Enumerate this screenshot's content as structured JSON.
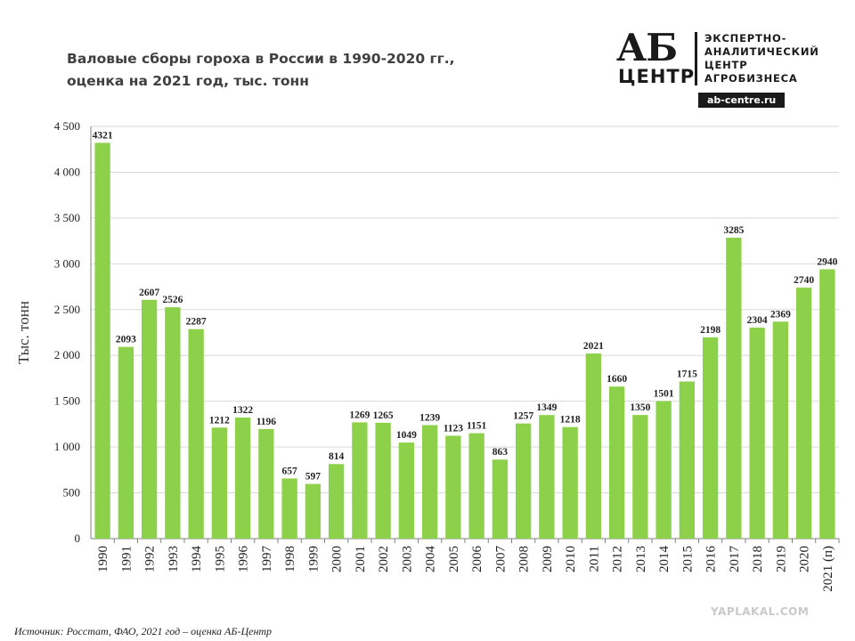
{
  "title": {
    "line1": "Валовые сборы гороха в России в 1990-2020 гг.,",
    "line2": "оценка на 2021 год, тыс. тонн"
  },
  "logo": {
    "letters": "АБ",
    "word": "ЦЕНТР",
    "line1": "ЭКСПЕРТНО-",
    "line2": "АНАЛИТИЧЕСКИЙ",
    "line3": "ЦЕНТР",
    "line4": "АГРОБИЗНЕСА",
    "url": "ab-centre.ru"
  },
  "source": {
    "label": "Источник:",
    "text": "Росстат, ФАО, 2021 год – оценка АБ-Центр"
  },
  "watermark": "YAPLAKAL.COM",
  "colors": {
    "bar": "#8dd14a",
    "grid": "#d9d9d9",
    "axis": "#808080",
    "text": "#222222"
  },
  "chart_data": {
    "type": "bar",
    "ylabel": "Тыс. тонн",
    "ylim": [
      0,
      4500
    ],
    "yticks": [
      {
        "value": 0,
        "label": "0"
      },
      {
        "value": 500,
        "label": "500"
      },
      {
        "value": 1000,
        "label": "1 000"
      },
      {
        "value": 1500,
        "label": "1 500"
      },
      {
        "value": 2000,
        "label": "2 000"
      },
      {
        "value": 2500,
        "label": "2 500"
      },
      {
        "value": 3000,
        "label": "3 000"
      },
      {
        "value": 3500,
        "label": "3 500"
      },
      {
        "value": 4000,
        "label": "4 000"
      },
      {
        "value": 4500,
        "label": "4 500"
      }
    ],
    "grid": true,
    "categories": [
      "1990",
      "1991",
      "1992",
      "1993",
      "1994",
      "1995",
      "1996",
      "1997",
      "1998",
      "1999",
      "2000",
      "2001",
      "2002",
      "2003",
      "2004",
      "2005",
      "2006",
      "2007",
      "2008",
      "2009",
      "2010",
      "2011",
      "2012",
      "2013",
      "2014",
      "2015",
      "2016",
      "2017",
      "2018",
      "2019",
      "2020",
      "2021 (п)"
    ],
    "values": [
      4321,
      2093,
      2607,
      2526,
      2287,
      1212,
      1322,
      1196,
      657,
      597,
      814,
      1269,
      1265,
      1049,
      1239,
      1123,
      1151,
      863,
      1257,
      1349,
      1218,
      2021,
      1660,
      1350,
      1501,
      1715,
      2198,
      3285,
      2304,
      2369,
      2740,
      2940
    ]
  }
}
